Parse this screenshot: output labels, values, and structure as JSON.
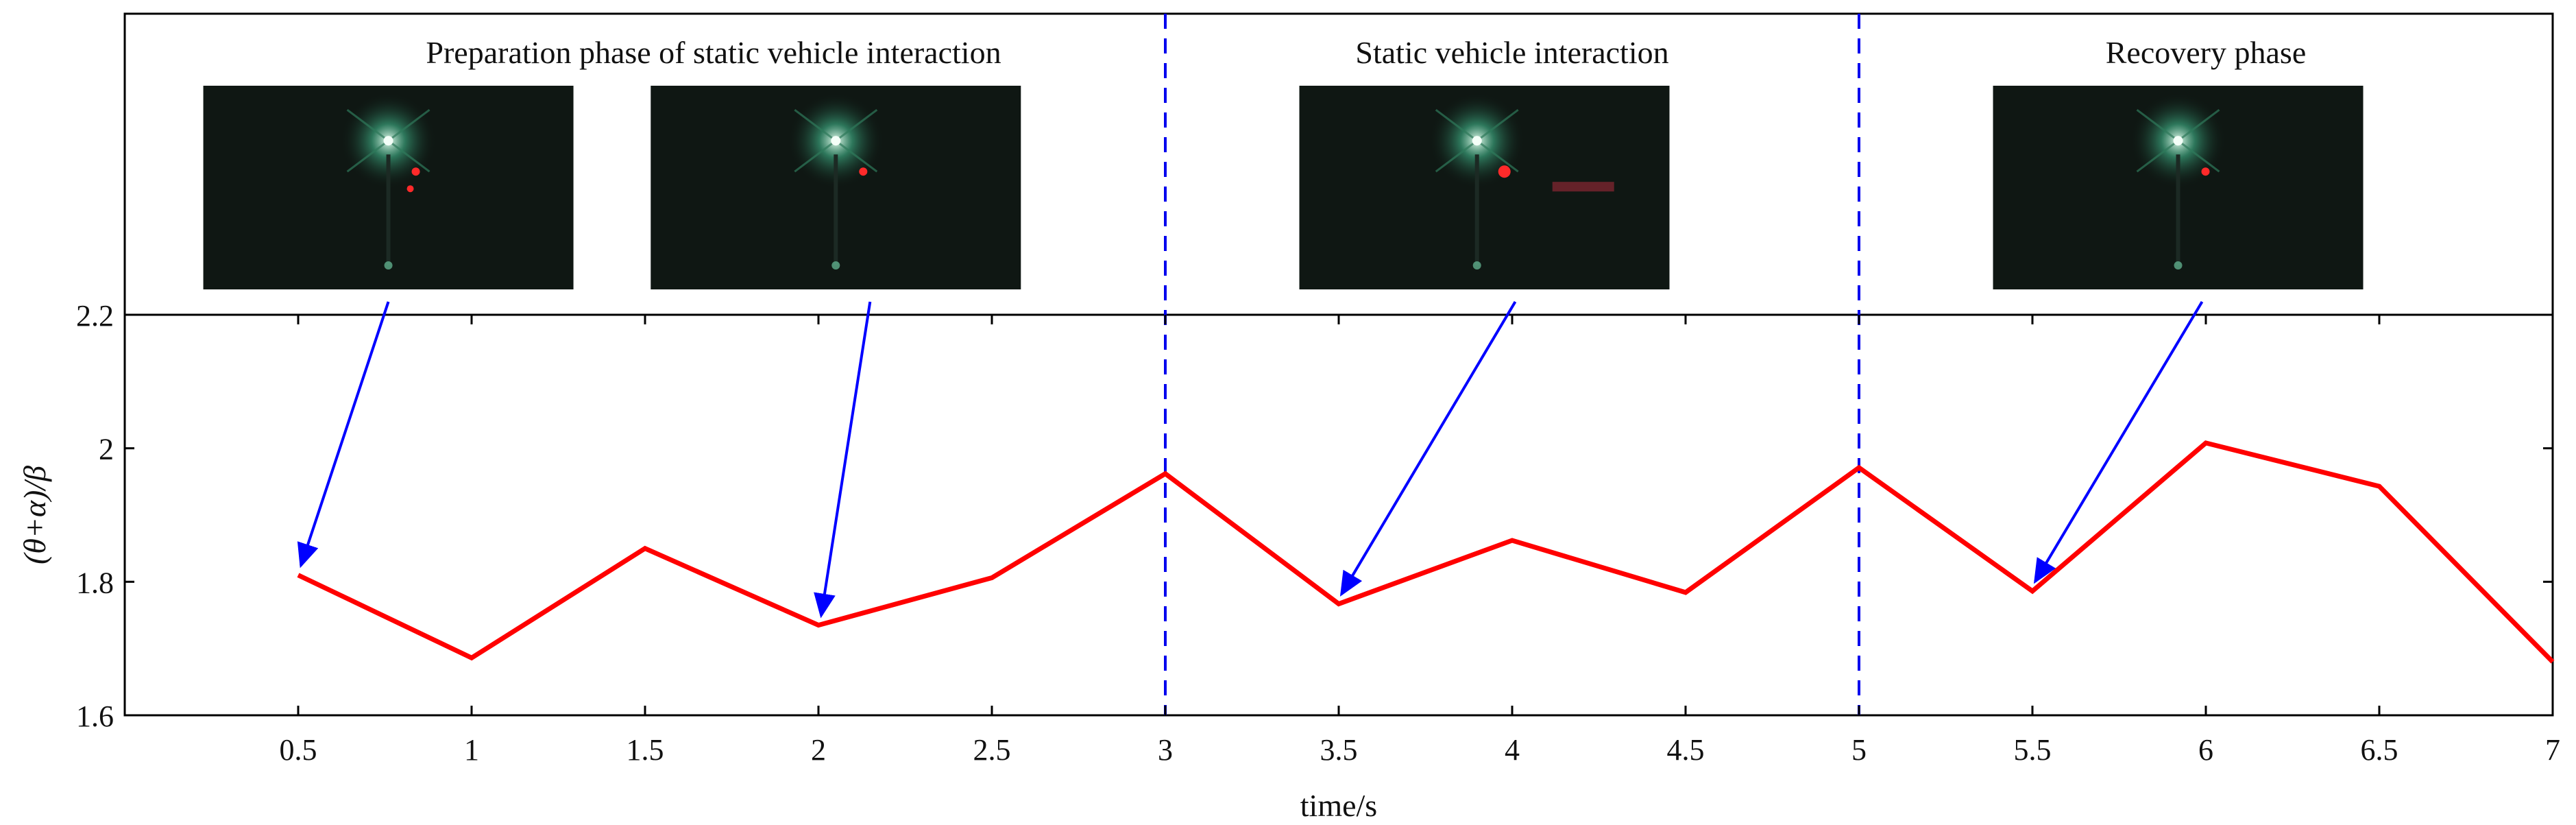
{
  "chart_data": {
    "type": "line",
    "xlabel": "time/s",
    "ylabel": "(θ+α)/β",
    "xlim": [
      0,
      7
    ],
    "ylim": [
      1.6,
      2.2
    ],
    "xticks": [
      0.5,
      1,
      1.5,
      2,
      2.5,
      3,
      3.5,
      4,
      4.5,
      5,
      5.5,
      6,
      6.5,
      7
    ],
    "xtick_labels": [
      "0.5",
      "1",
      "1.5",
      "2",
      "2.5",
      "3",
      "3.5",
      "4",
      "4.5",
      "5",
      "5.5",
      "6",
      "6.5",
      "7"
    ],
    "yticks": [
      1.6,
      1.8,
      2,
      2.2
    ],
    "ytick_labels": [
      "1.6",
      "1.8",
      "2",
      "2.2"
    ],
    "grid": false,
    "series": [
      {
        "color": "#ff0000",
        "x": [
          0.5,
          1,
          1.5,
          2,
          2.5,
          3,
          3.5,
          4,
          4.5,
          5,
          5.5,
          6,
          6.5,
          7
        ],
        "y": [
          1.81,
          1.686,
          1.85,
          1.735,
          1.806,
          1.962,
          1.767,
          1.862,
          1.784,
          1.971,
          1.786,
          2.008,
          1.943,
          1.68
        ]
      }
    ],
    "phase_dividers": [
      3,
      5
    ],
    "phase_labels": [
      {
        "text": "Preparation phase of static vehicle interaction",
        "x_center": 1.5
      },
      {
        "text": "Static vehicle interaction",
        "x_center": 4.0
      },
      {
        "text": "Recovery phase",
        "x_center": 6.0
      }
    ],
    "thumbnails": [
      {
        "x_center": 0.76,
        "points_to_x": 0.5
      },
      {
        "x_center": 2.05,
        "points_to_x": 2.0
      },
      {
        "x_center": 3.92,
        "points_to_x": 3.5
      },
      {
        "x_center": 5.92,
        "points_to_x": 5.5
      }
    ],
    "divider_color": "#0000ee",
    "arrow_color": "#0000ff"
  }
}
